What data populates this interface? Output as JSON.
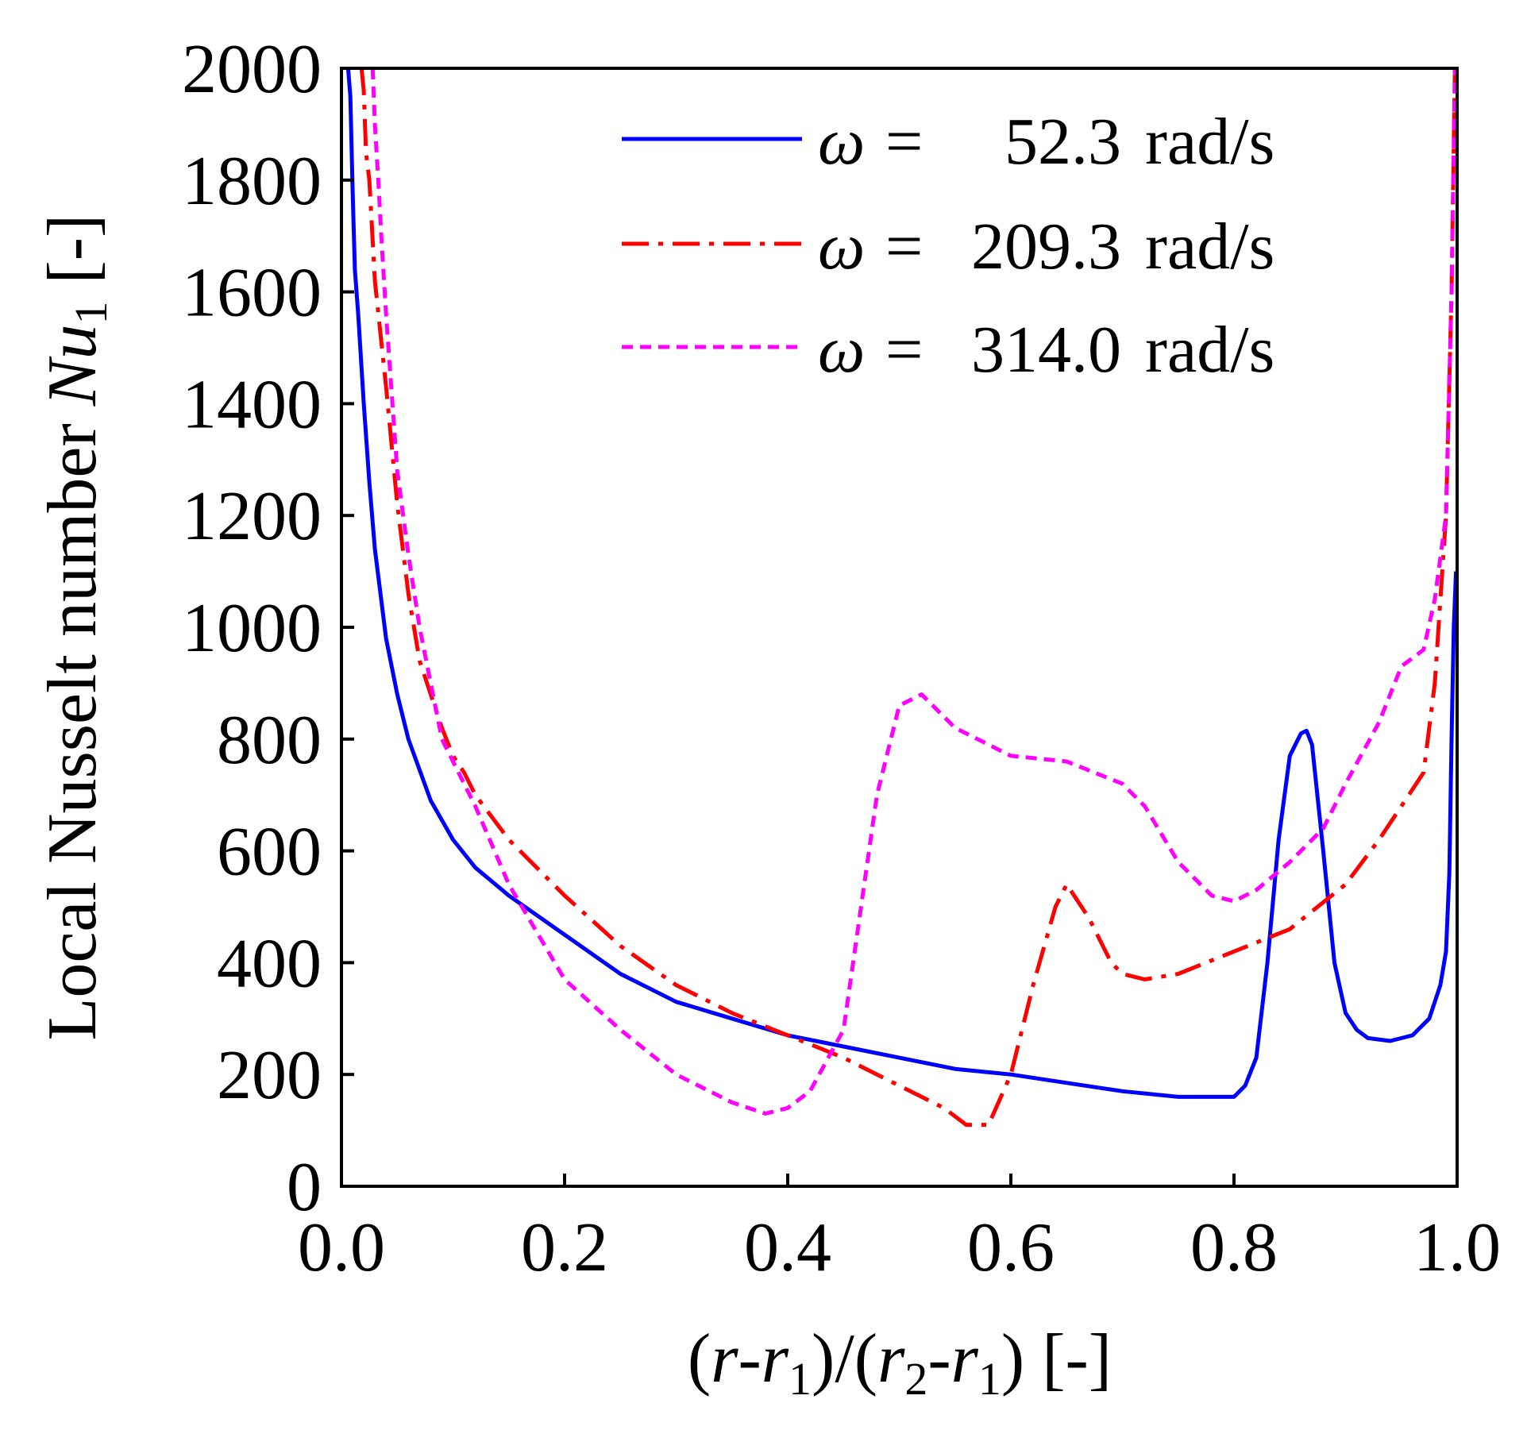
{
  "chart_data": {
    "type": "line",
    "title": "",
    "xlabel": {
      "open": "(",
      "r": "r",
      "dash": "-",
      "r1a": "r",
      "sub1": "1",
      "mid": ")/(",
      "r2": "r",
      "sub2": "2",
      "dash2": "-",
      "r1b": "r",
      "sub3": "1",
      "close": ") [-]"
    },
    "ylabel": {
      "prefix": "Local Nusselt number ",
      "var": "Nu",
      "sub": "1",
      "suffix": " [-]"
    },
    "xlim": [
      0.0,
      1.0
    ],
    "ylim": [
      0,
      2000
    ],
    "xticks": [
      0.0,
      0.2,
      0.4,
      0.6,
      0.8,
      1.0
    ],
    "xtick_labels": [
      "0.0",
      "0.2",
      "0.4",
      "0.6",
      "0.8",
      "1.0"
    ],
    "yticks": [
      0,
      200,
      400,
      600,
      800,
      1000,
      1200,
      1400,
      1600,
      1800,
      2000
    ],
    "ytick_labels": [
      "0",
      "200",
      "400",
      "600",
      "800",
      "1000",
      "1200",
      "1400",
      "1600",
      "1800",
      "2000"
    ],
    "grid": false,
    "legend_position": "top-right",
    "series": [
      {
        "name": "ω = 52.3 rad/s",
        "legend_symbol": "ω",
        "legend_eq": "=",
        "legend_value": "52.3",
        "legend_unit": "rad/s",
        "color": "#0000ff",
        "dash": "solid",
        "x": [
          0.006,
          0.008,
          0.01,
          0.012,
          0.015,
          0.02,
          0.025,
          0.03,
          0.04,
          0.05,
          0.06,
          0.08,
          0.1,
          0.12,
          0.15,
          0.2,
          0.25,
          0.3,
          0.35,
          0.4,
          0.45,
          0.5,
          0.55,
          0.6,
          0.65,
          0.7,
          0.75,
          0.78,
          0.8,
          0.81,
          0.82,
          0.83,
          0.84,
          0.85,
          0.86,
          0.865,
          0.87,
          0.88,
          0.89,
          0.9,
          0.91,
          0.92,
          0.94,
          0.96,
          0.975,
          0.985,
          0.99,
          0.993,
          0.995,
          0.997,
          0.999
        ],
        "y": [
          2000,
          1950,
          1780,
          1640,
          1560,
          1400,
          1260,
          1140,
          980,
          880,
          800,
          690,
          620,
          570,
          520,
          450,
          380,
          330,
          300,
          270,
          250,
          230,
          210,
          200,
          185,
          170,
          160,
          160,
          160,
          180,
          230,
          400,
          620,
          770,
          810,
          815,
          790,
          600,
          400,
          310,
          280,
          265,
          260,
          270,
          300,
          360,
          420,
          560,
          800,
          1000,
          1100
        ]
      },
      {
        "name": "ω = 209.3 rad/s",
        "legend_symbol": "ω",
        "legend_eq": "=",
        "legend_value": "209.3",
        "legend_unit": "rad/s",
        "color": "#ff0000",
        "dash": "dash-dot",
        "x": [
          0.018,
          0.02,
          0.022,
          0.025,
          0.03,
          0.04,
          0.05,
          0.06,
          0.07,
          0.08,
          0.09,
          0.1,
          0.11,
          0.12,
          0.15,
          0.2,
          0.25,
          0.3,
          0.35,
          0.4,
          0.45,
          0.5,
          0.54,
          0.56,
          0.58,
          0.6,
          0.62,
          0.64,
          0.65,
          0.67,
          0.69,
          0.7,
          0.72,
          0.75,
          0.8,
          0.85,
          0.9,
          0.93,
          0.95,
          0.97,
          0.98,
          0.99,
          0.995,
          0.998
        ],
        "y": [
          2000,
          1960,
          1850,
          1800,
          1620,
          1430,
          1220,
          1060,
          940,
          880,
          820,
          770,
          740,
          700,
          620,
          520,
          430,
          360,
          310,
          270,
          230,
          180,
          140,
          110,
          110,
          200,
          360,
          500,
          540,
          480,
          400,
          380,
          370,
          380,
          420,
          460,
          540,
          620,
          680,
          740,
          900,
          1200,
          1600,
          2000
        ]
      },
      {
        "name": "ω = 314.0 rad/s",
        "legend_symbol": "ω",
        "legend_eq": "=",
        "legend_value": "314.0",
        "legend_unit": "rad/s",
        "color": "#ff00ff",
        "dash": "dashed",
        "x": [
          0.028,
          0.03,
          0.033,
          0.036,
          0.04,
          0.045,
          0.05,
          0.06,
          0.07,
          0.08,
          0.09,
          0.1,
          0.11,
          0.12,
          0.15,
          0.2,
          0.25,
          0.3,
          0.35,
          0.38,
          0.4,
          0.42,
          0.45,
          0.48,
          0.5,
          0.52,
          0.55,
          0.6,
          0.65,
          0.7,
          0.72,
          0.75,
          0.78,
          0.8,
          0.82,
          0.85,
          0.88,
          0.9,
          0.93,
          0.95,
          0.97,
          0.98,
          0.99,
          0.995,
          0.998
        ],
        "y": [
          2000,
          1900,
          1800,
          1690,
          1560,
          1420,
          1280,
          1130,
          1000,
          900,
          800,
          760,
          720,
          680,
          540,
          370,
          280,
          200,
          150,
          130,
          140,
          170,
          280,
          700,
          860,
          880,
          820,
          770,
          760,
          720,
          680,
          580,
          520,
          510,
          530,
          580,
          640,
          720,
          830,
          930,
          960,
          1050,
          1200,
          1600,
          2000
        ]
      }
    ]
  }
}
